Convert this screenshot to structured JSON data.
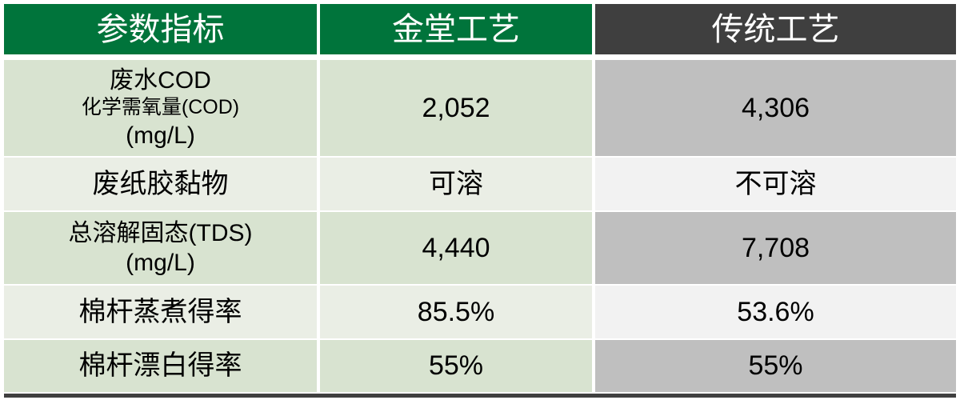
{
  "table": {
    "headers": [
      "参数指标",
      "金堂工艺",
      "传统工艺"
    ],
    "rows": [
      {
        "param_lines": [
          "废水COD",
          "化学需氧量(COD)",
          "(mg/L)"
        ],
        "jintang": "2,052",
        "traditional": "4,306"
      },
      {
        "param_lines": [
          "废纸胶黏物"
        ],
        "jintang": "可溶",
        "traditional": "不可溶"
      },
      {
        "param_lines": [
          "总溶解固态(TDS)",
          "(mg/L)"
        ],
        "jintang": "4,440",
        "traditional": "7,708"
      },
      {
        "param_lines": [
          "棉杆蒸煮得率"
        ],
        "jintang": "85.5%",
        "traditional": "53.6%"
      },
      {
        "param_lines": [
          "棉杆漂白得率"
        ],
        "jintang": "55%",
        "traditional": "55%"
      }
    ]
  },
  "colors": {
    "header-green": "#00743B",
    "header-dark": "#3F3F3F",
    "band-green": "#D8E3D0",
    "band-green-light": "#EAEEE5",
    "band-gray": "#BFBFBF",
    "band-gray-light": "#F2F2F2",
    "border-dark": "#404040",
    "text": "#000000"
  },
  "chart_data": {
    "type": "table",
    "title": "",
    "columns": [
      "参数指标",
      "金堂工艺",
      "传统工艺"
    ],
    "rows": [
      [
        "废水COD 化学需氧量(COD) (mg/L)",
        "2,052",
        "4,306"
      ],
      [
        "废纸胶黏物",
        "可溶",
        "不可溶"
      ],
      [
        "总溶解固态(TDS) (mg/L)",
        "4,440",
        "7,708"
      ],
      [
        "棉杆蒸煮得率",
        "85.5%",
        "53.6%"
      ],
      [
        "棉杆漂白得率",
        "55%",
        "55%"
      ]
    ]
  }
}
